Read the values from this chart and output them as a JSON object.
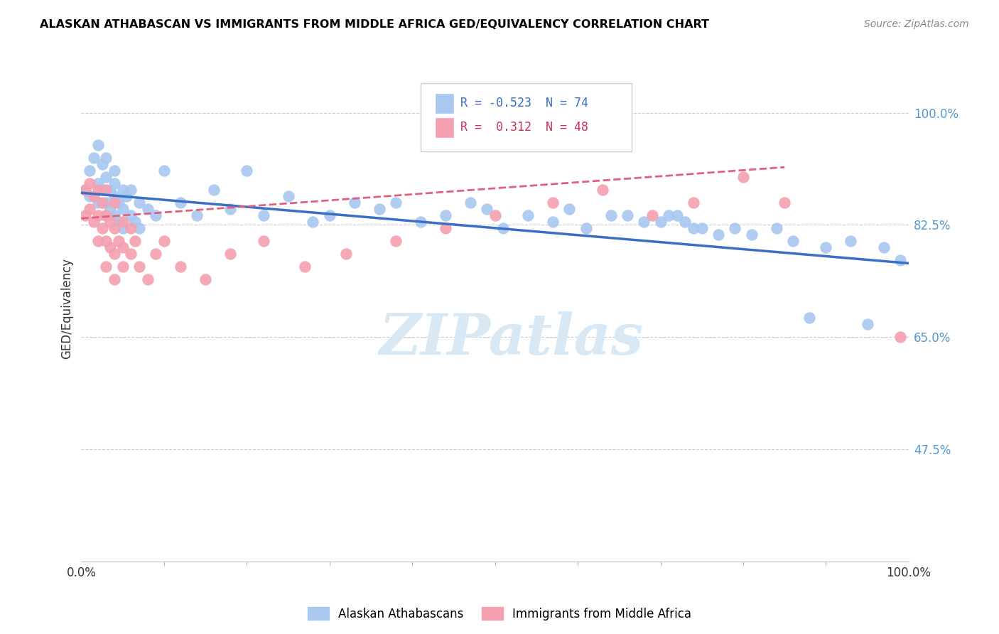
{
  "title": "ALASKAN ATHABASCAN VS IMMIGRANTS FROM MIDDLE AFRICA GED/EQUIVALENCY CORRELATION CHART",
  "source": "Source: ZipAtlas.com",
  "ylabel": "GED/Equivalency",
  "xmin": 0.0,
  "xmax": 1.0,
  "ymin": 0.3,
  "ymax": 1.09,
  "yticks": [
    0.475,
    0.65,
    0.825,
    1.0
  ],
  "ytick_labels": [
    "47.5%",
    "65.0%",
    "82.5%",
    "100.0%"
  ],
  "blue_R": -0.523,
  "blue_N": 74,
  "pink_R": 0.312,
  "pink_N": 48,
  "blue_color": "#a8c8f0",
  "pink_color": "#f4a0b0",
  "blue_line_color": "#3a6fc4",
  "pink_line_color": "#e06080",
  "legend_label_blue": "Alaskan Athabascans",
  "legend_label_pink": "Immigrants from Middle Africa",
  "watermark": "ZIPatlas",
  "blue_scatter_x": [
    0.005,
    0.01,
    0.01,
    0.015,
    0.02,
    0.02,
    0.02,
    0.025,
    0.025,
    0.03,
    0.03,
    0.03,
    0.03,
    0.035,
    0.035,
    0.04,
    0.04,
    0.04,
    0.04,
    0.045,
    0.045,
    0.05,
    0.05,
    0.05,
    0.055,
    0.06,
    0.06,
    0.065,
    0.07,
    0.07,
    0.08,
    0.09,
    0.1,
    0.12,
    0.14,
    0.16,
    0.18,
    0.2,
    0.22,
    0.25,
    0.28,
    0.3,
    0.33,
    0.36,
    0.38,
    0.41,
    0.44,
    0.47,
    0.49,
    0.51,
    0.54,
    0.57,
    0.59,
    0.61,
    0.64,
    0.66,
    0.68,
    0.7,
    0.71,
    0.72,
    0.73,
    0.74,
    0.75,
    0.77,
    0.79,
    0.81,
    0.84,
    0.86,
    0.88,
    0.9,
    0.93,
    0.95,
    0.97,
    0.99
  ],
  "blue_scatter_y": [
    0.88,
    0.91,
    0.87,
    0.93,
    0.95,
    0.89,
    0.86,
    0.92,
    0.88,
    0.9,
    0.86,
    0.84,
    0.93,
    0.88,
    0.85,
    0.91,
    0.87,
    0.84,
    0.89,
    0.86,
    0.83,
    0.88,
    0.85,
    0.82,
    0.87,
    0.84,
    0.88,
    0.83,
    0.86,
    0.82,
    0.85,
    0.84,
    0.91,
    0.86,
    0.84,
    0.88,
    0.85,
    0.91,
    0.84,
    0.87,
    0.83,
    0.84,
    0.86,
    0.85,
    0.86,
    0.83,
    0.84,
    0.86,
    0.85,
    0.82,
    0.84,
    0.83,
    0.85,
    0.82,
    0.84,
    0.84,
    0.83,
    0.83,
    0.84,
    0.84,
    0.83,
    0.82,
    0.82,
    0.81,
    0.82,
    0.81,
    0.82,
    0.8,
    0.68,
    0.79,
    0.8,
    0.67,
    0.79,
    0.77
  ],
  "pink_scatter_x": [
    0.005,
    0.005,
    0.01,
    0.01,
    0.015,
    0.015,
    0.02,
    0.02,
    0.02,
    0.025,
    0.025,
    0.03,
    0.03,
    0.03,
    0.03,
    0.035,
    0.035,
    0.04,
    0.04,
    0.04,
    0.04,
    0.045,
    0.05,
    0.05,
    0.05,
    0.06,
    0.06,
    0.065,
    0.07,
    0.08,
    0.09,
    0.1,
    0.12,
    0.15,
    0.18,
    0.22,
    0.27,
    0.32,
    0.38,
    0.44,
    0.5,
    0.57,
    0.63,
    0.69,
    0.74,
    0.8,
    0.85,
    0.99
  ],
  "pink_scatter_y": [
    0.88,
    0.84,
    0.89,
    0.85,
    0.87,
    0.83,
    0.88,
    0.84,
    0.8,
    0.86,
    0.82,
    0.84,
    0.88,
    0.8,
    0.76,
    0.83,
    0.79,
    0.86,
    0.82,
    0.78,
    0.74,
    0.8,
    0.83,
    0.79,
    0.76,
    0.82,
    0.78,
    0.8,
    0.76,
    0.74,
    0.78,
    0.8,
    0.76,
    0.74,
    0.78,
    0.8,
    0.76,
    0.78,
    0.8,
    0.82,
    0.84,
    0.86,
    0.88,
    0.84,
    0.86,
    0.9,
    0.86,
    0.65
  ]
}
